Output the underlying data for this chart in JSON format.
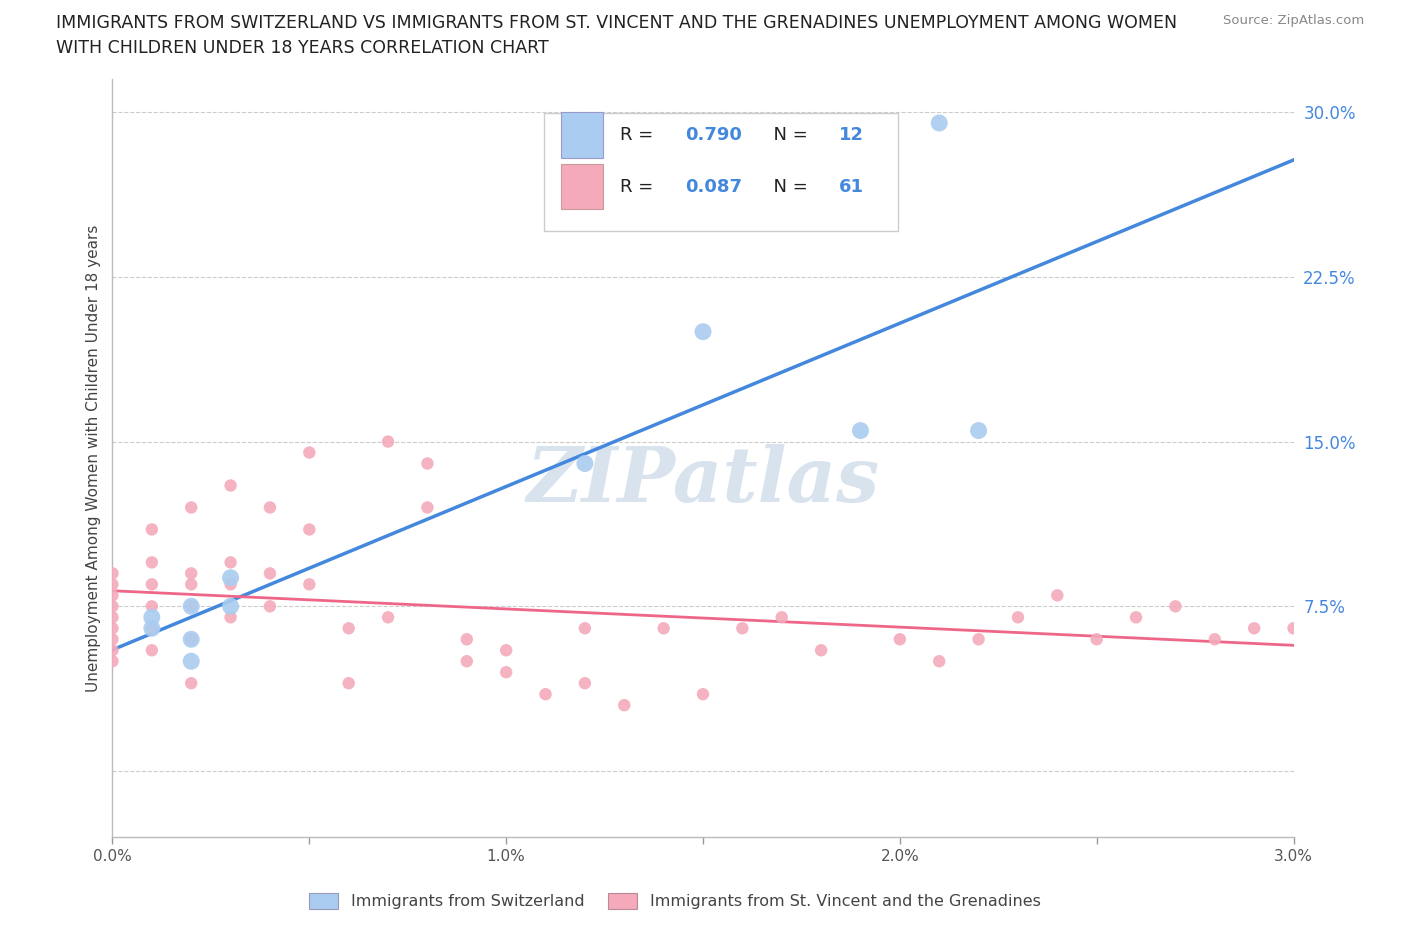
{
  "title_line1": "IMMIGRANTS FROM SWITZERLAND VS IMMIGRANTS FROM ST. VINCENT AND THE GRENADINES UNEMPLOYMENT AMONG WOMEN",
  "title_line2": "WITH CHILDREN UNDER 18 YEARS CORRELATION CHART",
  "source": "Source: ZipAtlas.com",
  "ylabel_left": "Unemployment Among Women with Children Under 18 years",
  "legend_label1": "Immigrants from Switzerland",
  "legend_label2": "Immigrants from St. Vincent and the Grenadines",
  "R1": 0.79,
  "N1": 12,
  "R2": 0.087,
  "N2": 61,
  "color1": "#aaccf0",
  "color2": "#f4aabb",
  "line_color1": "#4488dd",
  "line_color2": "#ee6688",
  "xmin": 0.0,
  "xmax": 0.03,
  "ymin": -0.03,
  "ymax": 0.315,
  "yticks": [
    0.0,
    0.075,
    0.15,
    0.225,
    0.3
  ],
  "ytick_labels": [
    "",
    "7.5%",
    "15.0%",
    "22.5%",
    "30.0%"
  ],
  "xticks": [
    0.0,
    0.005,
    0.01,
    0.015,
    0.02,
    0.025,
    0.03
  ],
  "xtick_labels": [
    "0.0%",
    "",
    "1.0%",
    "",
    "2.0%",
    "",
    "3.0%"
  ],
  "background_color": "#ffffff",
  "grid_color": "#cccccc",
  "watermark": "ZIPatlas",
  "watermark_color": "#c8d8e8",
  "swiss_x": [
    0.001,
    0.001,
    0.002,
    0.002,
    0.002,
    0.003,
    0.003,
    0.012,
    0.015,
    0.019,
    0.021,
    0.022
  ],
  "swiss_y": [
    0.07,
    0.065,
    0.05,
    0.06,
    0.075,
    0.075,
    0.088,
    0.14,
    0.2,
    0.155,
    0.295,
    0.155
  ],
  "svg_x": [
    0.0,
    0.0,
    0.0,
    0.0,
    0.0,
    0.0,
    0.0,
    0.0,
    0.0,
    0.001,
    0.001,
    0.001,
    0.001,
    0.001,
    0.001,
    0.002,
    0.002,
    0.002,
    0.002,
    0.002,
    0.002,
    0.003,
    0.003,
    0.003,
    0.003,
    0.004,
    0.004,
    0.004,
    0.005,
    0.005,
    0.005,
    0.006,
    0.006,
    0.007,
    0.007,
    0.008,
    0.008,
    0.009,
    0.009,
    0.01,
    0.01,
    0.011,
    0.012,
    0.012,
    0.013,
    0.014,
    0.015,
    0.016,
    0.017,
    0.018,
    0.02,
    0.021,
    0.022,
    0.023,
    0.024,
    0.025,
    0.026,
    0.027,
    0.028,
    0.029,
    0.03
  ],
  "svg_y": [
    0.07,
    0.08,
    0.065,
    0.085,
    0.075,
    0.06,
    0.09,
    0.055,
    0.05,
    0.11,
    0.095,
    0.075,
    0.055,
    0.085,
    0.065,
    0.12,
    0.085,
    0.075,
    0.09,
    0.06,
    0.04,
    0.13,
    0.095,
    0.085,
    0.07,
    0.12,
    0.09,
    0.075,
    0.145,
    0.11,
    0.085,
    0.065,
    0.04,
    0.15,
    0.07,
    0.14,
    0.12,
    0.06,
    0.05,
    0.045,
    0.055,
    0.035,
    0.065,
    0.04,
    0.03,
    0.065,
    0.035,
    0.065,
    0.07,
    0.055,
    0.06,
    0.05,
    0.06,
    0.07,
    0.08,
    0.06,
    0.07,
    0.075,
    0.06,
    0.065,
    0.065
  ]
}
